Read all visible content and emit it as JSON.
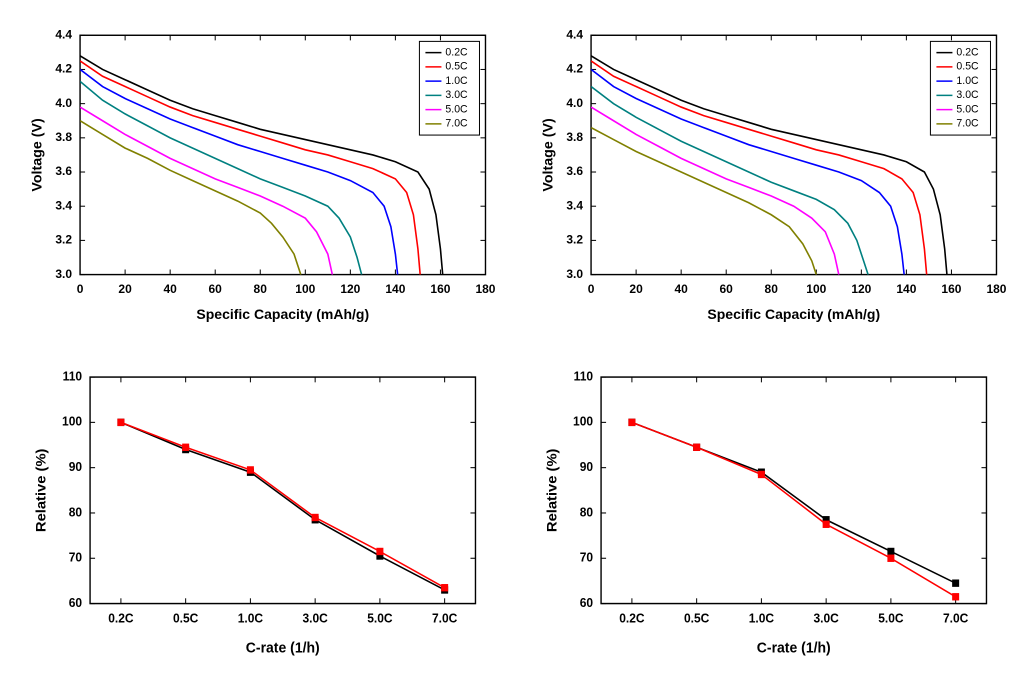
{
  "top_charts": {
    "type": "line",
    "xlabel": "Specific Capacity (mAh/g)",
    "ylabel": "Voltage (V)",
    "xlim": [
      0,
      180
    ],
    "ylim": [
      3.0,
      4.4
    ],
    "xticks": [
      0,
      20,
      40,
      60,
      80,
      100,
      120,
      140,
      160,
      180
    ],
    "yticks": [
      3.0,
      3.2,
      3.4,
      3.6,
      3.8,
      4.0,
      4.2,
      4.4
    ],
    "label_fontsize": 14,
    "tick_fontsize": 12,
    "background_color": "#ffffff",
    "axis_color": "#000000",
    "line_width": 1.6,
    "legend_items": [
      {
        "label": "0.2C",
        "color": "#000000"
      },
      {
        "label": "0.5C",
        "color": "#ff0000"
      },
      {
        "label": "1.0C",
        "color": "#0000ff"
      },
      {
        "label": "3.0C",
        "color": "#008080"
      },
      {
        "label": "5.0C",
        "color": "#ff00ff"
      },
      {
        "label": "7.0C",
        "color": "#808000"
      }
    ],
    "series": [
      {
        "label": "0.2C",
        "color": "#000000",
        "data": [
          [
            0,
            4.28
          ],
          [
            10,
            4.2
          ],
          [
            20,
            4.14
          ],
          [
            30,
            4.08
          ],
          [
            40,
            4.02
          ],
          [
            50,
            3.97
          ],
          [
            60,
            3.93
          ],
          [
            70,
            3.89
          ],
          [
            80,
            3.85
          ],
          [
            90,
            3.82
          ],
          [
            100,
            3.79
          ],
          [
            110,
            3.76
          ],
          [
            120,
            3.73
          ],
          [
            130,
            3.7
          ],
          [
            140,
            3.66
          ],
          [
            150,
            3.6
          ],
          [
            155,
            3.5
          ],
          [
            158,
            3.35
          ],
          [
            160,
            3.15
          ],
          [
            161,
            3.0
          ]
        ]
      },
      {
        "label": "0.5C",
        "color": "#ff0000",
        "data": [
          [
            0,
            4.25
          ],
          [
            10,
            4.16
          ],
          [
            20,
            4.1
          ],
          [
            30,
            4.04
          ],
          [
            40,
            3.98
          ],
          [
            50,
            3.93
          ],
          [
            60,
            3.89
          ],
          [
            70,
            3.85
          ],
          [
            80,
            3.81
          ],
          [
            90,
            3.77
          ],
          [
            100,
            3.73
          ],
          [
            110,
            3.7
          ],
          [
            120,
            3.66
          ],
          [
            130,
            3.62
          ],
          [
            140,
            3.56
          ],
          [
            145,
            3.48
          ],
          [
            148,
            3.35
          ],
          [
            150,
            3.15
          ],
          [
            151,
            3.0
          ]
        ]
      },
      {
        "label": "1.0C",
        "color": "#0000ff",
        "data": [
          [
            0,
            4.2
          ],
          [
            10,
            4.1
          ],
          [
            20,
            4.03
          ],
          [
            30,
            3.97
          ],
          [
            40,
            3.91
          ],
          [
            50,
            3.86
          ],
          [
            60,
            3.81
          ],
          [
            70,
            3.76
          ],
          [
            80,
            3.72
          ],
          [
            90,
            3.68
          ],
          [
            100,
            3.64
          ],
          [
            110,
            3.6
          ],
          [
            120,
            3.55
          ],
          [
            130,
            3.48
          ],
          [
            135,
            3.4
          ],
          [
            138,
            3.28
          ],
          [
            140,
            3.12
          ],
          [
            141,
            3.0
          ]
        ]
      },
      {
        "label": "3.0C",
        "color": "#008080",
        "data": [
          [
            0,
            4.13
          ],
          [
            10,
            4.02
          ],
          [
            20,
            3.94
          ],
          [
            30,
            3.87
          ],
          [
            40,
            3.8
          ],
          [
            50,
            3.74
          ],
          [
            60,
            3.68
          ],
          [
            70,
            3.62
          ],
          [
            80,
            3.56
          ],
          [
            90,
            3.51
          ],
          [
            100,
            3.46
          ],
          [
            110,
            3.4
          ],
          [
            115,
            3.33
          ],
          [
            120,
            3.22
          ],
          [
            123,
            3.1
          ],
          [
            125,
            3.0
          ]
        ]
      },
      {
        "label": "5.0C",
        "color": "#ff00ff",
        "data": [
          [
            0,
            3.98
          ],
          [
            10,
            3.9
          ],
          [
            20,
            3.82
          ],
          [
            30,
            3.75
          ],
          [
            40,
            3.68
          ],
          [
            50,
            3.62
          ],
          [
            60,
            3.56
          ],
          [
            70,
            3.51
          ],
          [
            80,
            3.46
          ],
          [
            90,
            3.4
          ],
          [
            100,
            3.33
          ],
          [
            105,
            3.25
          ],
          [
            110,
            3.12
          ],
          [
            112,
            3.0
          ]
        ]
      },
      {
        "label": "7.0C",
        "color": "#808000",
        "data": [
          [
            0,
            3.9
          ],
          [
            10,
            3.82
          ],
          [
            20,
            3.74
          ],
          [
            30,
            3.68
          ],
          [
            40,
            3.61
          ],
          [
            50,
            3.55
          ],
          [
            60,
            3.49
          ],
          [
            70,
            3.43
          ],
          [
            80,
            3.36
          ],
          [
            85,
            3.3
          ],
          [
            90,
            3.22
          ],
          [
            95,
            3.12
          ],
          [
            98,
            3.0
          ]
        ]
      }
    ]
  },
  "top_right_series": [
    {
      "label": "0.2C",
      "color": "#000000",
      "data": [
        [
          0,
          4.28
        ],
        [
          10,
          4.2
        ],
        [
          20,
          4.14
        ],
        [
          30,
          4.08
        ],
        [
          40,
          4.02
        ],
        [
          50,
          3.97
        ],
        [
          60,
          3.93
        ],
        [
          70,
          3.89
        ],
        [
          80,
          3.85
        ],
        [
          90,
          3.82
        ],
        [
          100,
          3.79
        ],
        [
          110,
          3.76
        ],
        [
          120,
          3.73
        ],
        [
          130,
          3.7
        ],
        [
          140,
          3.66
        ],
        [
          148,
          3.6
        ],
        [
          152,
          3.5
        ],
        [
          155,
          3.35
        ],
        [
          157,
          3.15
        ],
        [
          158,
          3.0
        ]
      ]
    },
    {
      "label": "0.5C",
      "color": "#ff0000",
      "data": [
        [
          0,
          4.25
        ],
        [
          10,
          4.16
        ],
        [
          20,
          4.1
        ],
        [
          30,
          4.04
        ],
        [
          40,
          3.98
        ],
        [
          50,
          3.93
        ],
        [
          60,
          3.89
        ],
        [
          70,
          3.85
        ],
        [
          80,
          3.81
        ],
        [
          90,
          3.77
        ],
        [
          100,
          3.73
        ],
        [
          110,
          3.7
        ],
        [
          120,
          3.66
        ],
        [
          130,
          3.62
        ],
        [
          138,
          3.56
        ],
        [
          143,
          3.48
        ],
        [
          146,
          3.35
        ],
        [
          148,
          3.15
        ],
        [
          149,
          3.0
        ]
      ]
    },
    {
      "label": "1.0C",
      "color": "#0000ff",
      "data": [
        [
          0,
          4.2
        ],
        [
          10,
          4.1
        ],
        [
          20,
          4.03
        ],
        [
          30,
          3.97
        ],
        [
          40,
          3.91
        ],
        [
          50,
          3.86
        ],
        [
          60,
          3.81
        ],
        [
          70,
          3.76
        ],
        [
          80,
          3.72
        ],
        [
          90,
          3.68
        ],
        [
          100,
          3.64
        ],
        [
          110,
          3.6
        ],
        [
          120,
          3.55
        ],
        [
          128,
          3.48
        ],
        [
          133,
          3.4
        ],
        [
          136,
          3.28
        ],
        [
          138,
          3.12
        ],
        [
          139,
          3.0
        ]
      ]
    },
    {
      "label": "3.0C",
      "color": "#008080",
      "data": [
        [
          0,
          4.1
        ],
        [
          10,
          4.0
        ],
        [
          20,
          3.92
        ],
        [
          30,
          3.85
        ],
        [
          40,
          3.78
        ],
        [
          50,
          3.72
        ],
        [
          60,
          3.66
        ],
        [
          70,
          3.6
        ],
        [
          80,
          3.54
        ],
        [
          90,
          3.49
        ],
        [
          100,
          3.44
        ],
        [
          108,
          3.38
        ],
        [
          114,
          3.3
        ],
        [
          118,
          3.2
        ],
        [
          121,
          3.08
        ],
        [
          123,
          3.0
        ]
      ]
    },
    {
      "label": "5.0C",
      "color": "#ff00ff",
      "data": [
        [
          0,
          3.98
        ],
        [
          10,
          3.9
        ],
        [
          20,
          3.82
        ],
        [
          30,
          3.75
        ],
        [
          40,
          3.68
        ],
        [
          50,
          3.62
        ],
        [
          60,
          3.56
        ],
        [
          70,
          3.51
        ],
        [
          80,
          3.46
        ],
        [
          90,
          3.4
        ],
        [
          98,
          3.33
        ],
        [
          104,
          3.25
        ],
        [
          108,
          3.12
        ],
        [
          110,
          3.0
        ]
      ]
    },
    {
      "label": "7.0C",
      "color": "#808000",
      "data": [
        [
          0,
          3.86
        ],
        [
          10,
          3.79
        ],
        [
          20,
          3.72
        ],
        [
          30,
          3.66
        ],
        [
          40,
          3.6
        ],
        [
          50,
          3.54
        ],
        [
          60,
          3.48
        ],
        [
          70,
          3.42
        ],
        [
          80,
          3.35
        ],
        [
          88,
          3.28
        ],
        [
          94,
          3.18
        ],
        [
          98,
          3.08
        ],
        [
          100,
          3.0
        ]
      ]
    }
  ],
  "bottom_charts": {
    "type": "line-scatter",
    "xlabel": "C-rate (1/h)",
    "ylabel": "Relative (%)",
    "xcategories": [
      "0.2C",
      "0.5C",
      "1.0C",
      "3.0C",
      "5.0C",
      "7.0C"
    ],
    "ylim": [
      60,
      110
    ],
    "yticks": [
      60,
      70,
      80,
      90,
      100,
      110
    ],
    "label_fontsize": 14,
    "tick_fontsize": 12,
    "background_color": "#ffffff",
    "axis_color": "#000000",
    "line_width": 1.5,
    "marker_size": 6,
    "left": {
      "series": [
        {
          "color": "#000000",
          "marker": "square",
          "values": [
            100.0,
            94.0,
            89.0,
            78.5,
            70.5,
            63.0
          ]
        },
        {
          "color": "#ff0000",
          "marker": "square",
          "values": [
            100.0,
            94.5,
            89.5,
            79.0,
            71.5,
            63.5
          ]
        }
      ]
    },
    "right": {
      "series": [
        {
          "color": "#000000",
          "marker": "square",
          "values": [
            100.0,
            94.5,
            89.0,
            78.5,
            71.5,
            64.5
          ]
        },
        {
          "color": "#ff0000",
          "marker": "square",
          "values": [
            100.0,
            94.5,
            88.5,
            77.5,
            70.0,
            61.5
          ]
        }
      ]
    }
  }
}
